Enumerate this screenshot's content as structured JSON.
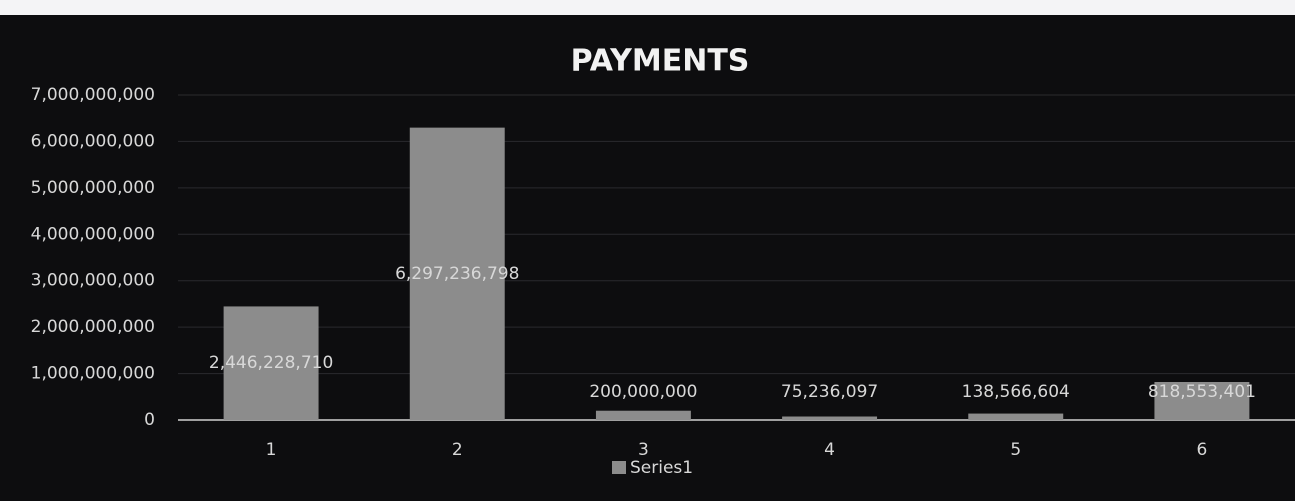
{
  "chart_data": {
    "type": "bar",
    "title": "PAYMENTS",
    "categories": [
      "1",
      "2",
      "3",
      "4",
      "5",
      "6"
    ],
    "values": [
      2446228710,
      6297236798,
      200000000,
      75236097,
      138566604,
      818553401
    ],
    "value_labels": [
      "2,446,228,710",
      "6,297,236,798",
      "200,000,000",
      "75,236,097",
      "138,566,604",
      "818,553,401"
    ],
    "color": "#8c8c8c",
    "ylim": [
      0,
      7000000000
    ],
    "yticks": [
      0,
      {
        "value": 1000000000,
        "label": "1,000,000,000"
      },
      {
        "value": 2000000000,
        "label": "2,000,000,000"
      },
      {
        "value": 3000000000,
        "label": "3,000,000,000"
      },
      {
        "value": 4000000000,
        "label": "4,000,000,000"
      },
      {
        "value": 5000000000,
        "label": "5,000,000,000"
      },
      {
        "value": 6000000000,
        "label": "6,000,000,000"
      },
      {
        "value": 7000000000,
        "label": "7,000,000,000"
      }
    ],
    "grid": true,
    "series_name": "Series1"
  }
}
